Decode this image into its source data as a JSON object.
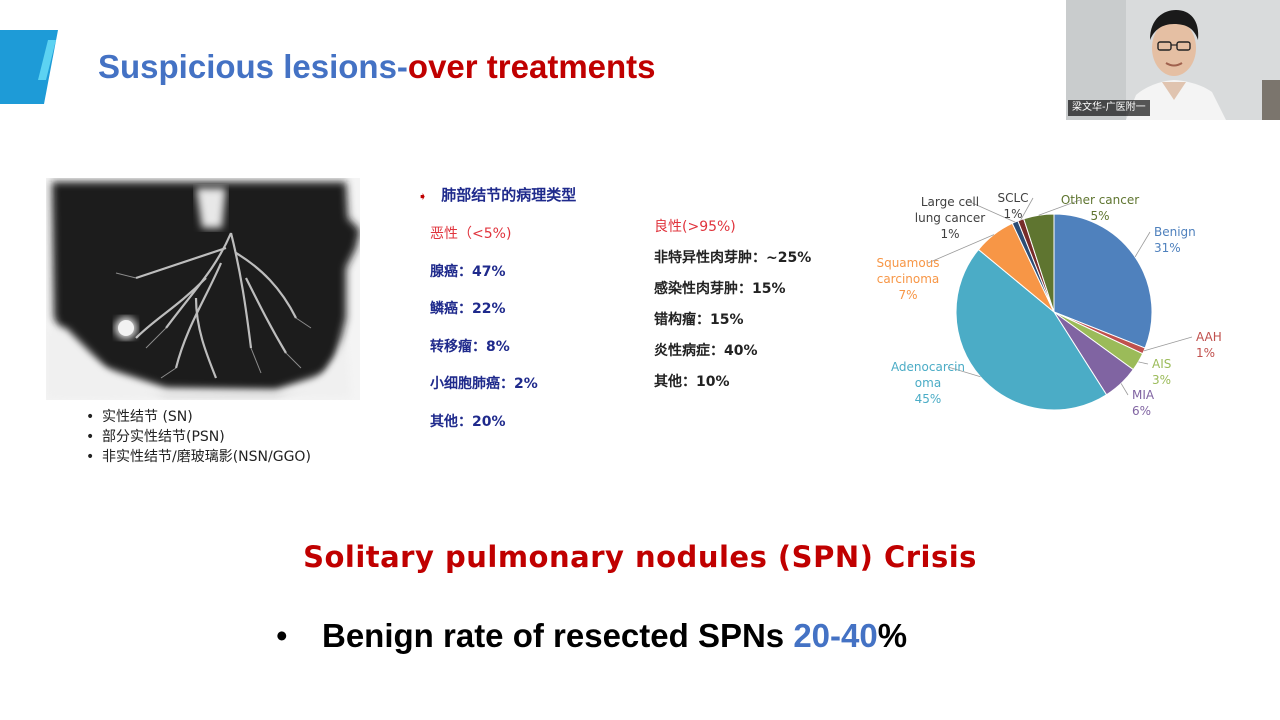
{
  "slide": {
    "title_part1": "Suspicious lesions-",
    "title_part2": "over treatments",
    "nodule_types": [
      "实性结节 (SN)",
      "部分实性结节(PSN)",
      "非实性结节/磨玻璃影(NSN/GGO)"
    ],
    "pathology_heading": "肺部结节的病理类型",
    "malignant": {
      "header": "恶性（<5%)",
      "items": [
        "腺癌：47%",
        "鳞癌：22%",
        "转移瘤：8%",
        "小细胞肺癌：2%",
        "其他：20%"
      ]
    },
    "benign": {
      "header": "良性(>95%)",
      "items": [
        "非特异性肉芽肿：~25%",
        "感染性肉芽肿：15%",
        "错构瘤：15%",
        "炎性病症：40%",
        "其他：10%"
      ]
    },
    "crisis_title": "Solitary pulmonary nodules (SPN) Crisis",
    "benign_rate_prefix": "Benign rate of resected SPNs ",
    "benign_rate_value": "20-40",
    "benign_rate_suffix": "%"
  },
  "chart_data": {
    "type": "pie",
    "slices": [
      {
        "label": "Benign",
        "value": 31,
        "pct": "31%",
        "color": "#4f81bd"
      },
      {
        "label": "AAH",
        "value": 1,
        "pct": "1%",
        "color": "#c0504d"
      },
      {
        "label": "AIS",
        "value": 3,
        "pct": "3%",
        "color": "#9bbb59"
      },
      {
        "label": "MIA",
        "value": 6,
        "pct": "6%",
        "color": "#8064a2"
      },
      {
        "label": "Adenocarcinoma",
        "value": 45,
        "pct": "45%",
        "color": "#4bacc6"
      },
      {
        "label": "Squamous carcinoma",
        "value": 7,
        "pct": "7%",
        "color": "#f79646"
      },
      {
        "label": "Large cell lung cancer",
        "value": 1,
        "pct": "1%",
        "color": "#2c4d75"
      },
      {
        "label": "SCLC",
        "value": 1,
        "pct": "1%",
        "color": "#772c2a"
      },
      {
        "label": "Other cancer",
        "value": 5,
        "pct": "5%",
        "color": "#5f7530"
      }
    ],
    "label_lines": {
      "Benign": [
        "Benign"
      ],
      "AAH": [
        "AAH"
      ],
      "AIS": [
        "AIS"
      ],
      "MIA": [
        "MIA"
      ],
      "Adenocarcinoma": [
        "Adenocarcin",
        "oma"
      ],
      "Squamous carcinoma": [
        "Squamous",
        "carcinoma"
      ],
      "Large cell lung cancer": [
        "Large cell",
        "lung cancer"
      ],
      "SCLC": [
        "SCLC"
      ],
      "Other cancer": [
        "Other cancer"
      ]
    },
    "legend": "none"
  },
  "webcam": {
    "name_tag": "梁文华-广医附一"
  },
  "colors": {
    "title_blue": "#4472c4",
    "title_red": "#c00000",
    "malignant_text": "#1f2a8c",
    "header_red": "#e0343d"
  }
}
